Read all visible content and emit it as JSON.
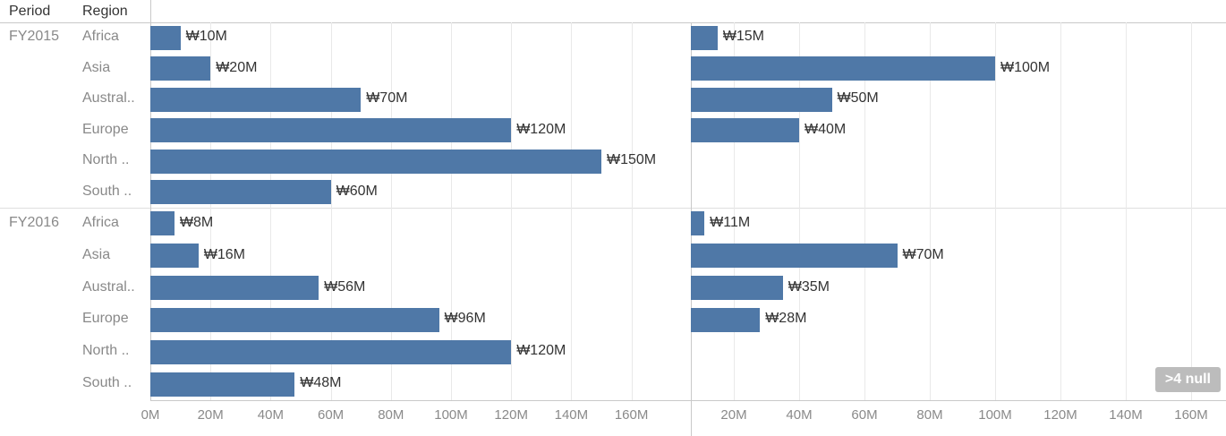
{
  "header": {
    "period": "Period",
    "region": "Region"
  },
  "colors": {
    "bar": "#4f78a7",
    "null_badge_bg": "#bcbcbc",
    "null_badge_text": "#ffffff",
    "grid": "#e9e9e9",
    "frame": "#c9c9c9"
  },
  "chart_data": {
    "type": "bar",
    "orientation": "horizontal",
    "currency_symbol": "₩",
    "value_unit": "M",
    "legend_position": "none",
    "grid": "on",
    "panels": [
      {
        "id": "left-measure",
        "axis": {
          "min": 0,
          "max": 180,
          "tick_values": [
            0,
            20,
            40,
            60,
            80,
            100,
            120,
            140,
            160
          ],
          "tick_labels": [
            "0M",
            "20M",
            "40M",
            "60M",
            "80M",
            "100M",
            "120M",
            "140M",
            "160M"
          ]
        }
      },
      {
        "id": "right-measure",
        "axis": {
          "min": 7,
          "max": 170,
          "tick_values": [
            20,
            40,
            60,
            80,
            100,
            120,
            140,
            160
          ],
          "tick_labels": [
            "20M",
            "40M",
            "60M",
            "80M",
            "100M",
            "120M",
            "140M",
            "160M"
          ]
        }
      }
    ],
    "groups": [
      {
        "period": "FY2015",
        "rows": [
          {
            "region": "Africa",
            "values": [
              10,
              15
            ],
            "labels": [
              "₩10M",
              "₩15M"
            ]
          },
          {
            "region": "Asia",
            "values": [
              20,
              100
            ],
            "labels": [
              "₩20M",
              "₩100M"
            ]
          },
          {
            "region": "Austral..",
            "values": [
              70,
              50
            ],
            "labels": [
              "₩70M",
              "₩50M"
            ]
          },
          {
            "region": "Europe",
            "values": [
              120,
              40
            ],
            "labels": [
              "₩120M",
              "₩40M"
            ]
          },
          {
            "region": "North ..",
            "values": [
              150,
              null
            ],
            "labels": [
              "₩150M",
              null
            ]
          },
          {
            "region": "South ..",
            "values": [
              60,
              null
            ],
            "labels": [
              "₩60M",
              null
            ]
          }
        ]
      },
      {
        "period": "FY2016",
        "rows": [
          {
            "region": "Africa",
            "values": [
              8,
              11
            ],
            "labels": [
              "₩8M",
              "₩11M"
            ]
          },
          {
            "region": "Asia",
            "values": [
              16,
              70
            ],
            "labels": [
              "₩16M",
              "₩70M"
            ]
          },
          {
            "region": "Austral..",
            "values": [
              56,
              35
            ],
            "labels": [
              "₩56M",
              "₩35M"
            ]
          },
          {
            "region": "Europe",
            "values": [
              96,
              28
            ],
            "labels": [
              "₩96M",
              "₩28M"
            ]
          },
          {
            "region": "North ..",
            "values": [
              120,
              null
            ],
            "labels": [
              "₩120M",
              null
            ]
          },
          {
            "region": "South ..",
            "values": [
              48,
              null
            ],
            "labels": [
              "₩48M",
              null
            ]
          }
        ]
      }
    ],
    "null_indicator": {
      "label": ">4 null"
    }
  }
}
